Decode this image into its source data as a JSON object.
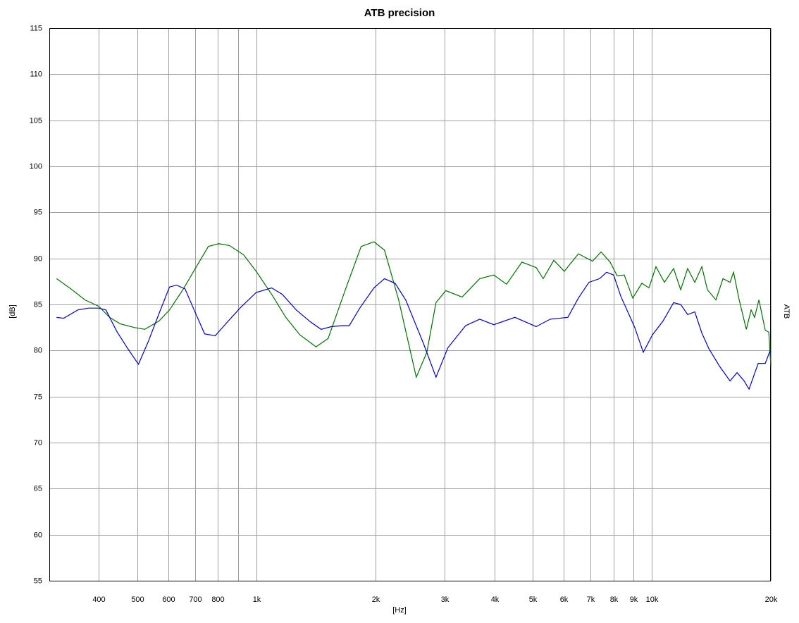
{
  "chart_data": {
    "type": "line",
    "title": "ATB precision",
    "x_label": "[Hz]",
    "y_label": "[dB]",
    "y2_label": "ATB",
    "log_x": true,
    "grid": true,
    "xlim": [
      300,
      20000
    ],
    "ylim": [
      55,
      115
    ],
    "yticks": [
      55,
      60,
      65,
      70,
      75,
      80,
      85,
      90,
      95,
      100,
      105,
      110,
      115
    ],
    "xticks": [
      400,
      500,
      600,
      700,
      800,
      {
        "value": 1000,
        "label": "1k"
      },
      {
        "value": 2000,
        "label": "2k"
      },
      {
        "value": 3000,
        "label": "3k"
      },
      {
        "value": 4000,
        "label": "4k"
      },
      {
        "value": 5000,
        "label": "5k"
      },
      {
        "value": 6000,
        "label": "6k"
      },
      {
        "value": 7000,
        "label": "7k"
      },
      {
        "value": 8000,
        "label": "8k"
      },
      {
        "value": 9000,
        "label": "9k"
      },
      {
        "value": 10000,
        "label": "10k"
      },
      {
        "value": 20000,
        "label": "20k"
      }
    ],
    "xgrid_minor": [
      900
    ],
    "series": [
      {
        "color": "#007000",
        "x": [
          313,
          340,
          369,
          400,
          426,
          453,
          492,
          523,
          568,
          604,
          655,
          706,
          757,
          804,
          856,
          929,
          1000,
          1094,
          1188,
          1290,
          1417,
          1520,
          1684,
          1843,
          1985,
          2111,
          2292,
          2539,
          2701,
          2848,
          3016,
          3315,
          3674,
          3988,
          4294,
          4699,
          5103,
          5316,
          5654,
          6012,
          6525,
          7084,
          7443,
          7849,
          8180,
          8521,
          8952,
          9441,
          9837,
          10249,
          10767,
          11357,
          11834,
          12329,
          12846,
          13384,
          13828,
          14529,
          15136,
          15772,
          16099,
          16634,
          17337,
          17838,
          18200,
          18657,
          19364,
          19767,
          20000
        ],
        "values": [
          87.8,
          86.7,
          85.5,
          84.8,
          83.6,
          82.9,
          82.5,
          82.3,
          83.2,
          84.4,
          86.7,
          89.1,
          91.3,
          91.6,
          91.4,
          90.4,
          88.6,
          86.1,
          83.6,
          81.7,
          80.4,
          81.3,
          86.7,
          91.3,
          91.8,
          90.9,
          85.5,
          77.1,
          79.8,
          85.2,
          86.5,
          85.8,
          87.8,
          88.2,
          87.2,
          89.6,
          89.0,
          87.8,
          89.8,
          88.6,
          90.5,
          89.7,
          90.7,
          89.6,
          88.1,
          88.2,
          85.7,
          87.3,
          86.8,
          89.1,
          87.4,
          88.9,
          86.6,
          88.9,
          87.4,
          89.1,
          86.6,
          85.5,
          87.8,
          87.4,
          88.5,
          85.5,
          82.3,
          84.4,
          83.6,
          85.5,
          82.2,
          82.0,
          78.3
        ]
      },
      {
        "color": "#0000c8",
        "x": [
          313,
          326,
          354,
          377,
          400,
          417,
          444,
          472,
          504,
          534,
          568,
          604,
          629,
          661,
          697,
          741,
          788,
          838,
          910,
          1000,
          1094,
          1164,
          1263,
          1372,
          1459,
          1551,
          1650,
          1719,
          1828,
          1985,
          2111,
          2245,
          2388,
          2646,
          2848,
          3053,
          3384,
          3674,
          3988,
          4510,
          5103,
          5539,
          6137,
          6525,
          6940,
          7381,
          7690,
          8011,
          8348,
          9061,
          9519,
          10042,
          10679,
          11357,
          11834,
          12329,
          12846,
          13384,
          13944,
          14830,
          15772,
          16432,
          17123,
          17620,
          18582,
          19364,
          19930
        ],
        "values": [
          83.6,
          83.5,
          84.4,
          84.6,
          84.6,
          84.4,
          82.1,
          80.3,
          78.5,
          81.0,
          84.0,
          86.9,
          87.1,
          86.7,
          84.4,
          81.8,
          81.6,
          82.9,
          84.6,
          86.3,
          86.8,
          86.1,
          84.4,
          83.1,
          82.3,
          82.6,
          82.7,
          82.7,
          84.6,
          86.8,
          87.8,
          87.3,
          85.5,
          80.8,
          77.1,
          80.3,
          82.7,
          83.4,
          82.8,
          83.6,
          82.6,
          83.4,
          83.6,
          85.7,
          87.4,
          87.8,
          88.5,
          88.2,
          85.9,
          82.5,
          79.8,
          81.7,
          83.2,
          85.2,
          85.0,
          83.9,
          84.2,
          81.9,
          80.2,
          78.3,
          76.7,
          77.6,
          76.7,
          75.8,
          78.6,
          78.6,
          80.0
        ]
      }
    ]
  }
}
